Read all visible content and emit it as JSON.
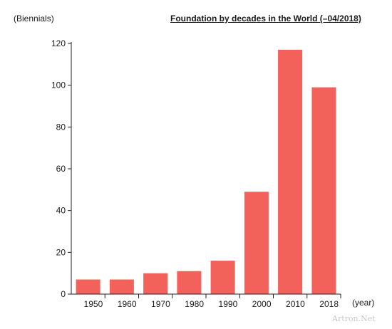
{
  "chart_data": {
    "type": "bar",
    "title": "Foundation by decades in the World (–04/2018)",
    "ylabel": "(Biennials)",
    "xlabel": "(year)",
    "ylim": [
      0,
      120
    ],
    "yticks": [
      0,
      20,
      40,
      60,
      80,
      100,
      120
    ],
    "xticks": [
      "1950",
      "1960",
      "1970",
      "1980",
      "1990",
      "2000",
      "2010",
      "2018"
    ],
    "values": [
      7,
      7,
      10,
      11,
      16,
      49,
      117,
      99
    ],
    "bar_color": "#f2625a",
    "grid": false
  },
  "watermark": "Artron.Net"
}
